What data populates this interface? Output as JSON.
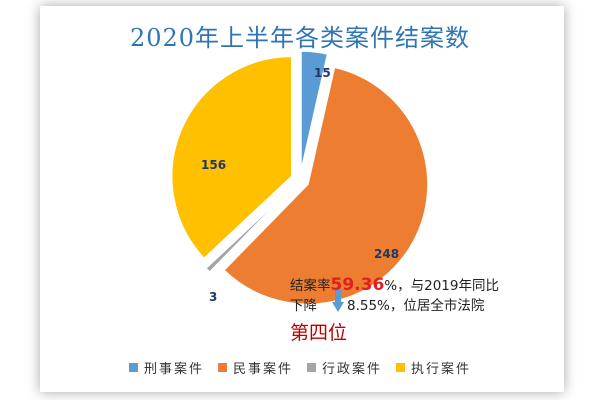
{
  "chart_data": {
    "type": "pie",
    "title": "2020年上半年各类案件结案数",
    "categories": [
      "刑事案件",
      "民事案件",
      "行政案件",
      "执行案件"
    ],
    "values": [
      15,
      248,
      3,
      156
    ],
    "colors": [
      "#5b9bd5",
      "#ed7d31",
      "#a5a5a5",
      "#ffc000"
    ],
    "data_labels": [
      "15",
      "248",
      "3",
      "156"
    ],
    "legend": "bottom",
    "annotation": {
      "line1_prefix": "结案率",
      "rate": "59.36",
      "line1_suffix": "%，与2019年同比",
      "line2_prefix": "下降",
      "line2_value": "8.55%，位居全市法院",
      "rank": "第四位"
    }
  }
}
